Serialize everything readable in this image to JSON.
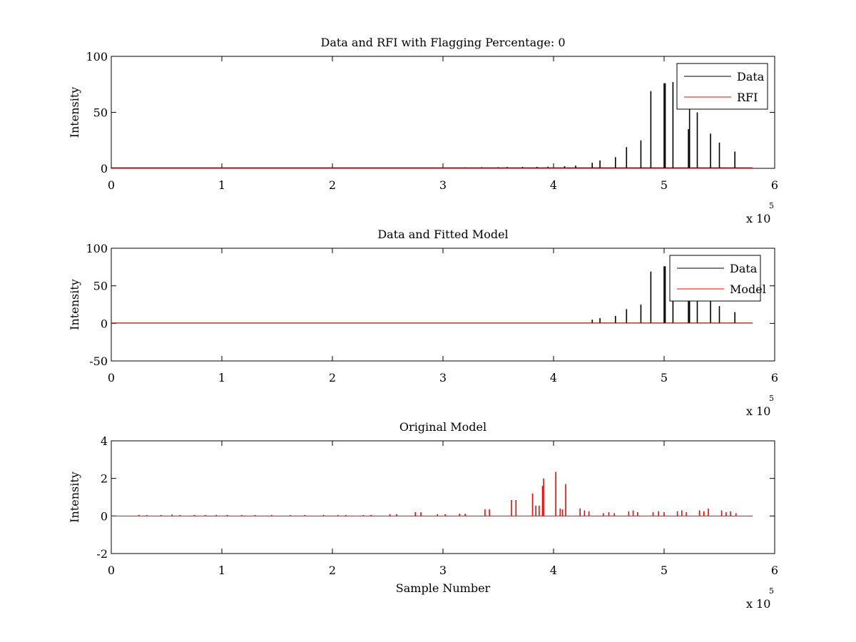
{
  "chart_data": [
    {
      "type": "line",
      "title": "Data and RFI with Flagging Percentage: 0",
      "xlabel": "",
      "ylabel": "Intensity",
      "xlim": [
        0,
        6
      ],
      "ylim": [
        0,
        100
      ],
      "xticks": [
        "0",
        "1",
        "2",
        "3",
        "4",
        "5",
        "6"
      ],
      "yticks": [
        "0",
        "50",
        "100"
      ],
      "x_multiplier": "x 10",
      "x_multiplier_exp": "5",
      "legend": [
        "Data",
        "RFI"
      ],
      "legend_position": "top-right",
      "series": [
        {
          "name": "Data",
          "color": "#000000",
          "baseline": 0.5,
          "x_end": 5.8,
          "spikes": [
            {
              "x": 3.2,
              "y": 0.8
            },
            {
              "x": 3.35,
              "y": 1.0
            },
            {
              "x": 3.5,
              "y": 1.0
            },
            {
              "x": 3.58,
              "y": 1.2
            },
            {
              "x": 3.72,
              "y": 1.2
            },
            {
              "x": 3.85,
              "y": 1.3
            },
            {
              "x": 3.95,
              "y": 1.5
            },
            {
              "x": 4.1,
              "y": 2
            },
            {
              "x": 4.2,
              "y": 2.5
            },
            {
              "x": 4.35,
              "y": 5
            },
            {
              "x": 4.42,
              "y": 7
            },
            {
              "x": 4.56,
              "y": 10
            },
            {
              "x": 4.66,
              "y": 19
            },
            {
              "x": 4.79,
              "y": 25
            },
            {
              "x": 4.88,
              "y": 69
            },
            {
              "x": 5.0,
              "y": 76
            },
            {
              "x": 5.01,
              "y": 76
            },
            {
              "x": 5.08,
              "y": 77
            },
            {
              "x": 5.22,
              "y": 35
            },
            {
              "x": 5.23,
              "y": 65
            },
            {
              "x": 5.3,
              "y": 50
            },
            {
              "x": 5.42,
              "y": 31
            },
            {
              "x": 5.5,
              "y": 23
            },
            {
              "x": 5.64,
              "y": 15
            }
          ]
        },
        {
          "name": "RFI",
          "color": "#ff0000",
          "baseline": 0,
          "x_end": 5.8,
          "spikes": []
        }
      ]
    },
    {
      "type": "line",
      "title": "Data and Fitted Model",
      "xlabel": "",
      "ylabel": "Intensity",
      "xlim": [
        0,
        6
      ],
      "ylim": [
        -50,
        100
      ],
      "xticks": [
        "0",
        "1",
        "2",
        "3",
        "4",
        "5",
        "6"
      ],
      "yticks": [
        "-50",
        "0",
        "50",
        "100"
      ],
      "x_multiplier": "x 10",
      "x_multiplier_exp": "5",
      "legend": [
        "Data",
        "Model"
      ],
      "legend_position": "top-right",
      "series": [
        {
          "name": "Data",
          "color": "#000000",
          "baseline": 0.5,
          "x_end": 5.8,
          "spikes": [
            {
              "x": 4.35,
              "y": 5
            },
            {
              "x": 4.42,
              "y": 7
            },
            {
              "x": 4.56,
              "y": 10
            },
            {
              "x": 4.66,
              "y": 19
            },
            {
              "x": 4.79,
              "y": 25
            },
            {
              "x": 4.88,
              "y": 69
            },
            {
              "x": 5.0,
              "y": 76
            },
            {
              "x": 5.01,
              "y": 76
            },
            {
              "x": 5.08,
              "y": 77
            },
            {
              "x": 5.22,
              "y": 35
            },
            {
              "x": 5.23,
              "y": 65
            },
            {
              "x": 5.3,
              "y": 50
            },
            {
              "x": 5.42,
              "y": 31
            },
            {
              "x": 5.5,
              "y": 23
            },
            {
              "x": 5.64,
              "y": 15
            }
          ]
        },
        {
          "name": "Model",
          "color": "#ff0000",
          "baseline": 0.3,
          "x_end": 5.8,
          "spikes": []
        }
      ]
    },
    {
      "type": "line",
      "title": "Original Model",
      "xlabel": "Sample Number",
      "ylabel": "Intensity",
      "xlim": [
        0,
        6
      ],
      "ylim": [
        -2,
        4
      ],
      "xticks": [
        "0",
        "1",
        "2",
        "3",
        "4",
        "5",
        "6"
      ],
      "yticks": [
        "-2",
        "0",
        "2",
        "4"
      ],
      "x_multiplier": "x 10",
      "x_multiplier_exp": "5",
      "legend": [],
      "series": [
        {
          "color": "#ff0000",
          "baseline": 0,
          "x_end": 5.8,
          "spikes": [
            {
              "x": 0.25,
              "y": 0.05
            },
            {
              "x": 0.32,
              "y": 0.05
            },
            {
              "x": 0.45,
              "y": 0.05
            },
            {
              "x": 0.55,
              "y": 0.08
            },
            {
              "x": 0.62,
              "y": 0.05
            },
            {
              "x": 0.75,
              "y": 0.05
            },
            {
              "x": 0.85,
              "y": 0.05
            },
            {
              "x": 0.95,
              "y": 0.06
            },
            {
              "x": 1.05,
              "y": 0.05
            },
            {
              "x": 1.18,
              "y": 0.05
            },
            {
              "x": 1.3,
              "y": 0.05
            },
            {
              "x": 1.45,
              "y": 0.05
            },
            {
              "x": 1.62,
              "y": 0.05
            },
            {
              "x": 1.75,
              "y": 0.05
            },
            {
              "x": 1.92,
              "y": 0.06
            },
            {
              "x": 2.05,
              "y": 0.05
            },
            {
              "x": 2.12,
              "y": 0.05
            },
            {
              "x": 2.28,
              "y": 0.05
            },
            {
              "x": 2.35,
              "y": 0.06
            },
            {
              "x": 2.52,
              "y": 0.1
            },
            {
              "x": 2.58,
              "y": 0.1
            },
            {
              "x": 2.75,
              "y": 0.2
            },
            {
              "x": 2.8,
              "y": 0.2
            },
            {
              "x": 2.95,
              "y": 0.1
            },
            {
              "x": 3.02,
              "y": 0.1
            },
            {
              "x": 3.15,
              "y": 0.12
            },
            {
              "x": 3.2,
              "y": 0.12
            },
            {
              "x": 3.38,
              "y": 0.35
            },
            {
              "x": 3.42,
              "y": 0.35
            },
            {
              "x": 3.62,
              "y": 0.85
            },
            {
              "x": 3.66,
              "y": 0.85
            },
            {
              "x": 3.81,
              "y": 1.2
            },
            {
              "x": 3.84,
              "y": 0.55
            },
            {
              "x": 3.87,
              "y": 0.55
            },
            {
              "x": 3.9,
              "y": 1.6
            },
            {
              "x": 3.91,
              "y": 2.0
            },
            {
              "x": 4.02,
              "y": 2.35
            },
            {
              "x": 4.06,
              "y": 0.4
            },
            {
              "x": 4.08,
              "y": 0.35
            },
            {
              "x": 4.11,
              "y": 1.7
            },
            {
              "x": 4.24,
              "y": 0.4
            },
            {
              "x": 4.28,
              "y": 0.3
            },
            {
              "x": 4.32,
              "y": 0.25
            },
            {
              "x": 4.45,
              "y": 0.15
            },
            {
              "x": 4.5,
              "y": 0.2
            },
            {
              "x": 4.55,
              "y": 0.15
            },
            {
              "x": 4.68,
              "y": 0.25
            },
            {
              "x": 4.72,
              "y": 0.3
            },
            {
              "x": 4.76,
              "y": 0.2
            },
            {
              "x": 4.9,
              "y": 0.2
            },
            {
              "x": 4.95,
              "y": 0.25
            },
            {
              "x": 5.0,
              "y": 0.2
            },
            {
              "x": 5.12,
              "y": 0.25
            },
            {
              "x": 5.16,
              "y": 0.3
            },
            {
              "x": 5.2,
              "y": 0.2
            },
            {
              "x": 5.32,
              "y": 0.3
            },
            {
              "x": 5.36,
              "y": 0.25
            },
            {
              "x": 5.4,
              "y": 0.4
            },
            {
              "x": 5.52,
              "y": 0.3
            },
            {
              "x": 5.56,
              "y": 0.2
            },
            {
              "x": 5.6,
              "y": 0.25
            },
            {
              "x": 5.65,
              "y": 0.15
            }
          ]
        }
      ]
    }
  ]
}
